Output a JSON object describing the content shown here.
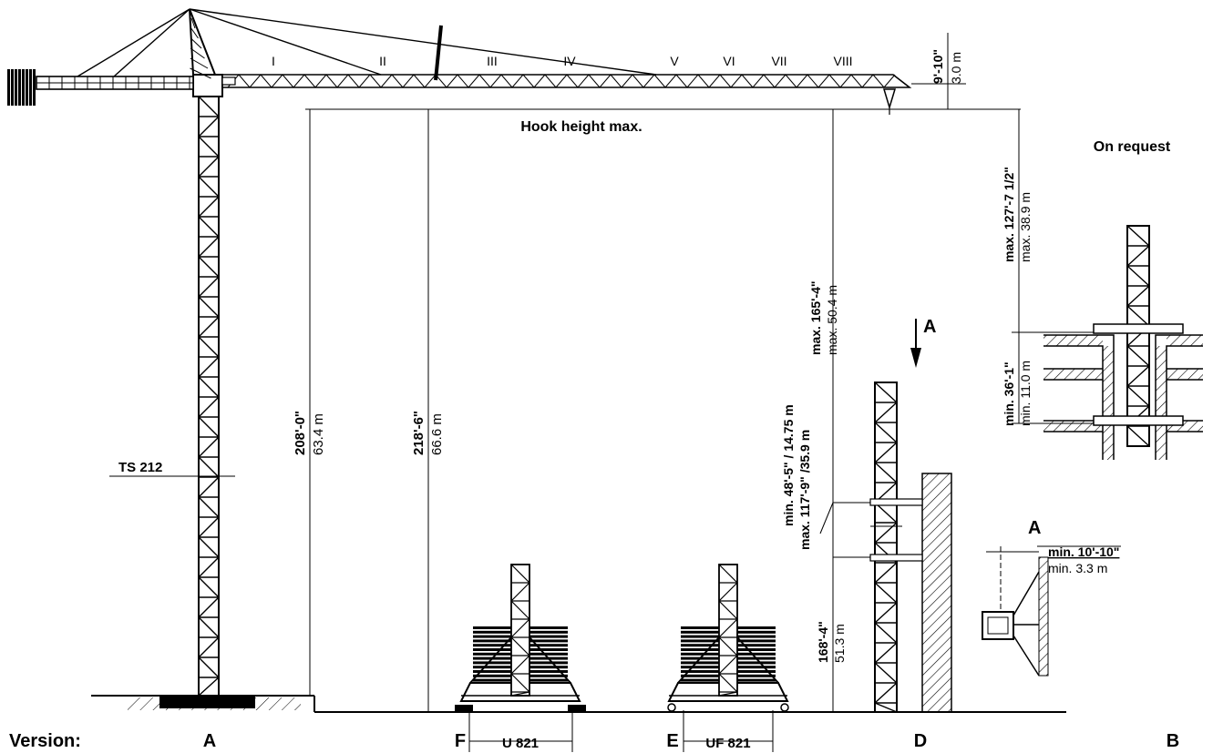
{
  "jib_sections": [
    "I",
    "II",
    "III",
    "IV",
    "V",
    "VI",
    "VII",
    "VIII"
  ],
  "jib_height": {
    "imperial": "9'-10\"",
    "metric": "3.0 m"
  },
  "hook_height_label": "Hook height max.",
  "tower_label": "TS 212",
  "on_request_label": "On request",
  "heights": {
    "a": {
      "imperial": "208'-0\"",
      "metric": "63.4 m"
    },
    "f": {
      "imperial": "218'-6\"",
      "metric": "66.6 m"
    },
    "d_top": {
      "imperial": "max. 165'-4\"",
      "metric": "max. 50.4 m"
    },
    "d_tie_min": "min. 48'-5\" / 14.75 m",
    "d_tie_max": "max. 117'-9\" /35.9 m",
    "d_bottom": {
      "imperial": "168'-4\"",
      "metric": "51.3 m"
    },
    "b_top": {
      "imperial": "max. 127'-7 1/2\"",
      "metric": "max. 38.9 m"
    },
    "b_bottom": {
      "imperial": "min. 36'-1\"",
      "metric": "min. 11.0 m"
    }
  },
  "section_a": {
    "arrow_label": "A",
    "view_label": "A",
    "distance_imperial": "min. 10'-10\"",
    "distance_metric": "min. 3.3 m"
  },
  "undercarriages": {
    "f": "U 821",
    "e": "UF 821"
  },
  "versions": {
    "label": "Version:",
    "a": "A",
    "f": "F",
    "e": "E",
    "d": "D",
    "b": "B"
  }
}
